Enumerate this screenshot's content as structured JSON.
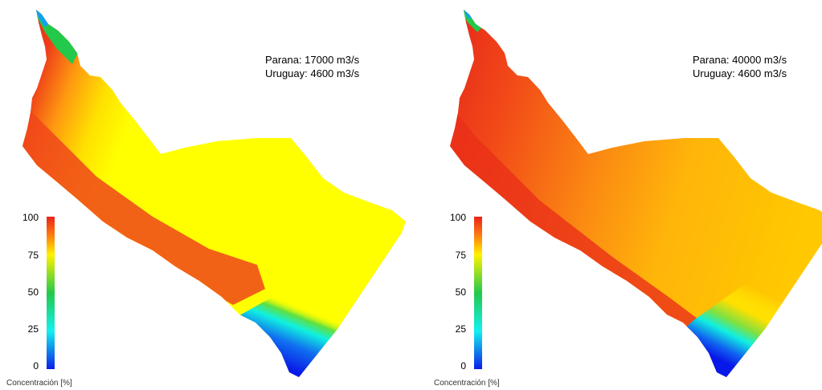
{
  "panels": [
    {
      "line1": "Parana: 17000 m3/s",
      "line2": "Uruguay: 4600 m3/s",
      "scale": {
        "title": "Concentración [%]",
        "ticks": [
          "100",
          "75",
          "50",
          "25",
          "0"
        ]
      }
    },
    {
      "line1": "Parana: 40000 m3/s",
      "line2": "Uruguay: 4600 m3/s",
      "scale": {
        "title": "Concentración [%]",
        "ticks": [
          "100",
          "75",
          "50",
          "25",
          "0"
        ]
      }
    }
  ],
  "colors": {
    "c100": "#e8241b",
    "c75": "#fff200",
    "c50": "#22c94a",
    "c25": "#14f0f0",
    "c0": "#0a1ee8"
  }
}
